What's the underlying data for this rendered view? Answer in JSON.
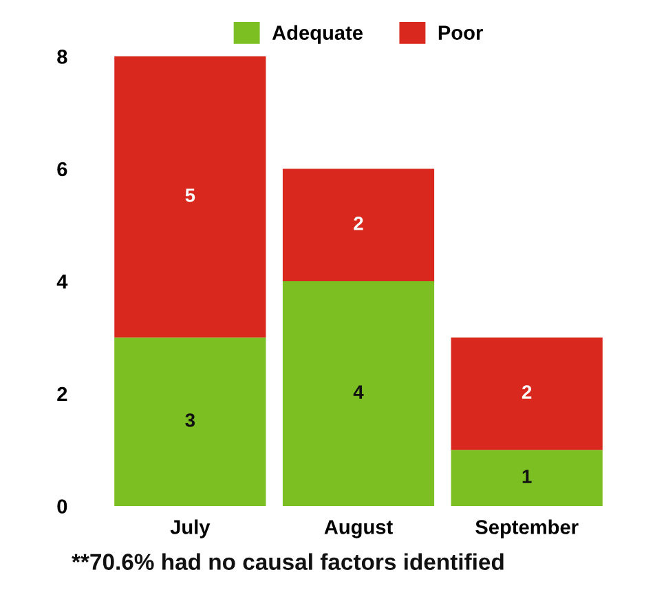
{
  "chart_data": {
    "type": "bar",
    "stacked": true,
    "categories": [
      "July",
      "August",
      "September"
    ],
    "series": [
      {
        "name": "Adequate",
        "color": "#7bbf22",
        "values": [
          3,
          4,
          1
        ]
      },
      {
        "name": "Poor",
        "color": "#d9291e",
        "values": [
          5,
          2,
          2
        ]
      }
    ],
    "ylim": [
      0,
      8
    ],
    "yticks": [
      0,
      2,
      4,
      6,
      8
    ],
    "grid": false,
    "legend": "top",
    "data_labels": true,
    "annotations": [
      "**70.6% had no causal factors identified"
    ]
  }
}
